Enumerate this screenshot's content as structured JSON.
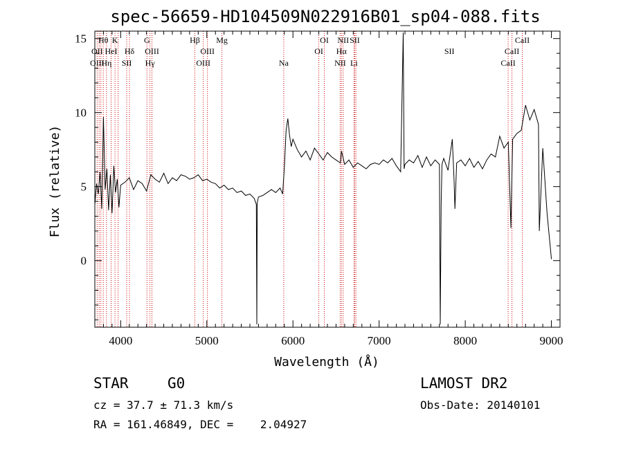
{
  "chart_data": {
    "type": "line",
    "title": "spec-56659-HD104509N022916B01_sp04-088.fits",
    "xlabel": "Wavelength (Å)",
    "ylabel": "Flux (relative)",
    "xlim": [
      3700,
      9100
    ],
    "ylim": [
      -4.5,
      15.5
    ],
    "xticks": [
      4000,
      5000,
      6000,
      7000,
      8000,
      9000
    ],
    "yticks": [
      0,
      5,
      10,
      15
    ],
    "grid": false,
    "legend": "none",
    "line_color": "#000000",
    "marker_color": "#cc0000",
    "series": [
      {
        "values_x": [
          3700,
          3720,
          3740,
          3760,
          3780,
          3800,
          3820,
          3840,
          3860,
          3880,
          3900,
          3920,
          3940,
          3960,
          3980,
          4000,
          4050,
          4100,
          4150,
          4200,
          4250,
          4300,
          4350,
          4400,
          4450,
          4500,
          4550,
          4600,
          4650,
          4700,
          4750,
          4800,
          4850,
          4900,
          4950,
          5000,
          5050,
          5100,
          5150,
          5200,
          5250,
          5300,
          5350,
          5400,
          5450,
          5500,
          5550,
          5575,
          5580,
          5585,
          5600,
          5650,
          5700,
          5750,
          5800,
          5850,
          5880,
          5900,
          5920,
          5940,
          5960,
          5980,
          6000,
          6050,
          6100,
          6150,
          6200,
          6250,
          6300,
          6350,
          6400,
          6450,
          6500,
          6550,
          6563,
          6600,
          6650,
          6700,
          6750,
          6800,
          6850,
          6900,
          6950,
          7000,
          7050,
          7100,
          7150,
          7200,
          7250,
          7280,
          7290,
          7300,
          7350,
          7400,
          7450,
          7500,
          7550,
          7600,
          7650,
          7700,
          7710,
          7720,
          7730,
          7750,
          7800,
          7850,
          7870,
          7880,
          7900,
          7950,
          8000,
          8050,
          8100,
          8150,
          8200,
          8250,
          8300,
          8350,
          8400,
          8450,
          8500,
          8530,
          8550,
          8600,
          8650,
          8700,
          8750,
          8800,
          8850,
          8860,
          8900,
          8950,
          9000
        ],
        "values_y": [
          3.8,
          5.2,
          4.5,
          6.0,
          3.5,
          9.7,
          4.8,
          6.2,
          3.4,
          5.8,
          3.2,
          6.4,
          4.6,
          5.5,
          3.6,
          5.1,
          5.3,
          5.6,
          4.8,
          5.4,
          5.2,
          4.7,
          5.8,
          5.5,
          5.3,
          5.9,
          5.2,
          5.6,
          5.4,
          5.8,
          5.7,
          5.5,
          5.6,
          5.8,
          5.4,
          5.5,
          5.3,
          5.2,
          4.9,
          5.1,
          4.8,
          4.9,
          4.6,
          4.7,
          4.4,
          4.5,
          4.2,
          3.8,
          -4.3,
          3.9,
          4.3,
          4.4,
          4.6,
          4.8,
          4.6,
          4.9,
          4.5,
          6.3,
          8.8,
          9.6,
          8.5,
          7.7,
          8.2,
          7.5,
          7.0,
          7.4,
          6.8,
          7.6,
          7.2,
          6.8,
          7.3,
          7.0,
          6.8,
          6.6,
          7.4,
          6.5,
          6.8,
          6.3,
          6.6,
          6.4,
          6.2,
          6.5,
          6.6,
          6.5,
          6.8,
          6.6,
          6.9,
          6.4,
          6.0,
          15.4,
          6.2,
          6.5,
          6.8,
          6.6,
          7.1,
          6.3,
          7.0,
          6.4,
          6.8,
          6.5,
          -4.3,
          3.8,
          6.5,
          6.9,
          6.1,
          8.2,
          5.5,
          3.5,
          6.6,
          6.8,
          6.4,
          6.9,
          6.3,
          6.7,
          6.2,
          6.8,
          7.2,
          7.0,
          8.4,
          7.6,
          8.0,
          2.2,
          8.2,
          8.6,
          8.8,
          10.5,
          9.5,
          10.2,
          9.2,
          2.0,
          7.6,
          3.2,
          0.1
        ]
      }
    ],
    "line_annotations": [
      {
        "label": "Hθ",
        "x": 3798,
        "row": 1
      },
      {
        "label": "K",
        "x": 3934,
        "row": 1
      },
      {
        "label": "G",
        "x": 4305,
        "row": 1
      },
      {
        "label": "Hβ",
        "x": 4861,
        "row": 1
      },
      {
        "label": "Mg",
        "x": 5175,
        "row": 1
      },
      {
        "label": "OI",
        "x": 6364,
        "row": 1
      },
      {
        "label": "NII",
        "x": 6583,
        "row": 1
      },
      {
        "label": "SII",
        "x": 6717,
        "row": 1
      },
      {
        "label": "CaII",
        "x": 8662,
        "row": 1
      },
      {
        "label": "OII",
        "x": 3727,
        "row": 2
      },
      {
        "label": "HeI",
        "x": 3889,
        "row": 2
      },
      {
        "label": "Hδ",
        "x": 4102,
        "row": 2
      },
      {
        "label": "OIII",
        "x": 4363,
        "row": 2
      },
      {
        "label": "OIII",
        "x": 5007,
        "row": 2
      },
      {
        "label": "OI",
        "x": 6300,
        "row": 2
      },
      {
        "label": "Hα",
        "x": 6563,
        "row": 2
      },
      {
        "label": "SII",
        "x": 7816,
        "row": 2
      },
      {
        "label": "CaII",
        "x": 8542,
        "row": 2
      },
      {
        "label": "OIII",
        "x": 3727,
        "row": 3
      },
      {
        "label": "Hη",
        "x": 3835,
        "row": 3
      },
      {
        "label": "SII",
        "x": 4070,
        "row": 3
      },
      {
        "label": "Hγ",
        "x": 4340,
        "row": 3
      },
      {
        "label": "OIII",
        "x": 4959,
        "row": 3
      },
      {
        "label": "Na",
        "x": 5893,
        "row": 3
      },
      {
        "label": "NII",
        "x": 6548,
        "row": 3
      },
      {
        "label": "Li",
        "x": 6708,
        "row": 3
      },
      {
        "label": "CaII",
        "x": 8498,
        "row": 3
      }
    ],
    "marker_lines_x": [
      3727,
      3750,
      3770,
      3798,
      3835,
      3889,
      3934,
      3970,
      4070,
      4102,
      4305,
      4340,
      4363,
      4861,
      4959,
      5007,
      5175,
      5893,
      6300,
      6364,
      6548,
      6563,
      6583,
      6708,
      6717,
      6731,
      8498,
      8542,
      8662
    ]
  },
  "footer": {
    "object_type": "STAR",
    "subclass": "G0",
    "survey": "LAMOST DR2",
    "redshift": "cz = 37.7 ± 71.3 km/s",
    "obs_date": "Obs-Date: 20140101",
    "coords": "RA = 161.46849, DEC =    2.04927"
  }
}
